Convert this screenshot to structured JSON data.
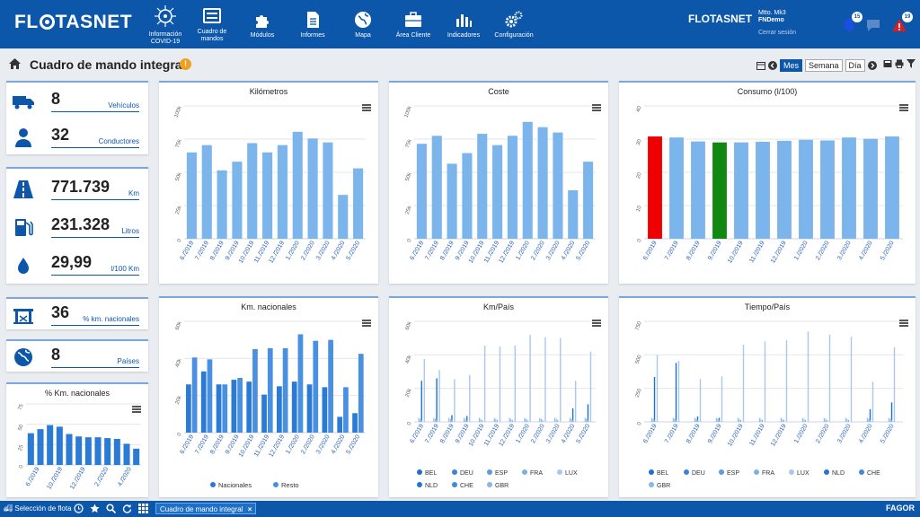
{
  "brand": {
    "name": "FLOTASNET",
    "small": "FLOTASNET"
  },
  "nav": [
    {
      "label": "Información COVID-19",
      "icon": "virus-icon"
    },
    {
      "label": "Cuadro de mandos",
      "icon": "dashboard-icon"
    },
    {
      "label": "Módulos",
      "icon": "puzzle-icon"
    },
    {
      "label": "Informes",
      "icon": "document-icon"
    },
    {
      "label": "Mapa",
      "icon": "globe-icon"
    },
    {
      "label": "Área Cliente",
      "icon": "briefcase-icon"
    },
    {
      "label": "Indicadores",
      "icon": "bar-chart-icon"
    },
    {
      "label": "Configuración",
      "icon": "gears-icon"
    }
  ],
  "user": {
    "line1": "Mtto. Mk3",
    "line2": "FNDemo",
    "logout": "Cerrar sesión"
  },
  "notifications": {
    "alerts": "15",
    "warnings": "19"
  },
  "page": {
    "title": "Cuadro de mando integral",
    "info": "!"
  },
  "period": {
    "mes": "Mes",
    "semana": "Semana",
    "dia": "Día",
    "active": "Mes"
  },
  "kpis": {
    "vehiculos": {
      "value": "8",
      "label": "Vehículos"
    },
    "conductores": {
      "value": "32",
      "label": "Conductores"
    },
    "km": {
      "value": "771.739",
      "label": "Km"
    },
    "litros": {
      "value": "231.328",
      "label": "Litros"
    },
    "consumo": {
      "value": "29,99",
      "label": "l/100 Km"
    },
    "nacionales": {
      "value": "36",
      "label": "% km. nacionales"
    },
    "paises": {
      "value": "8",
      "label": "Países"
    }
  },
  "months": [
    "6./2019",
    "7./2019",
    "8./2019",
    "9./2019",
    "10./2019",
    "11./2019",
    "12./2019",
    "1./2020",
    "2./2020",
    "3./2020",
    "4./2020",
    "5./2020"
  ],
  "chart_data": [
    {
      "id": "kilometros",
      "type": "bar",
      "title": "Kilómetros",
      "ylim": [
        0,
        100000
      ],
      "yticks": [
        "0",
        "25k",
        "50k",
        "75k",
        "100k"
      ],
      "color": "#7cb5ec",
      "values": [
        65000,
        70500,
        51500,
        58000,
        72000,
        65000,
        70500,
        80500,
        75500,
        72500,
        33000,
        53000
      ]
    },
    {
      "id": "coste",
      "type": "bar",
      "title": "Coste",
      "ylim": [
        0,
        100000
      ],
      "yticks": [
        "0",
        "25k",
        "50k",
        "75k",
        "100k"
      ],
      "color": "#7cb5ec",
      "values": [
        71500,
        77500,
        56500,
        64500,
        79000,
        70500,
        77500,
        88000,
        84000,
        80000,
        36500,
        58000
      ]
    },
    {
      "id": "consumo",
      "type": "bar",
      "title": "Consumo (l/100)",
      "ylim": [
        0,
        40
      ],
      "yticks": [
        "0",
        "10",
        "20",
        "30",
        "40"
      ],
      "color": "#7cb5ec",
      "highlight": {
        "0": "#ee0000",
        "3": "#118811"
      },
      "values": [
        30.8,
        30.5,
        29.3,
        29.0,
        29.0,
        29.2,
        29.5,
        29.8,
        29.6,
        30.5,
        30.1,
        30.8
      ]
    },
    {
      "id": "nacionales",
      "type": "bar",
      "title": "Km. nacionales",
      "ylim": [
        0,
        60000
      ],
      "yticks": [
        "0",
        "20k",
        "40k",
        "60k"
      ],
      "series": [
        {
          "name": "Nacionales",
          "color": "#2b7bd6",
          "values": [
            26000,
            33000,
            26000,
            28500,
            27500,
            20500,
            25000,
            27500,
            26000,
            24500,
            8500,
            10500
          ]
        },
        {
          "name": "Resto",
          "color": "#4a90e2",
          "values": [
            40500,
            39500,
            26000,
            29500,
            45000,
            45500,
            45500,
            53000,
            49500,
            50000,
            24500,
            42500
          ]
        }
      ]
    },
    {
      "id": "km_pais",
      "type": "bar",
      "title": "Km/País",
      "ylim": [
        0,
        60000
      ],
      "yticks": [
        "0",
        "20k",
        "40k",
        "60k"
      ],
      "series": [
        {
          "name": "BEL",
          "color": "#1f6fd0"
        },
        {
          "name": "DEU",
          "color": "#3c83d8"
        },
        {
          "name": "ESP",
          "color": "#5d9be0"
        },
        {
          "name": "FRA",
          "color": "#7eb0e6"
        },
        {
          "name": "LUX",
          "color": "#a9c8ee"
        },
        {
          "name": "NLD",
          "color": "#2474d4"
        },
        {
          "name": "CHE",
          "color": "#4189dc"
        },
        {
          "name": "GBR",
          "color": "#8ab5e8"
        }
      ],
      "main_values": [
        37500,
        31000,
        25500,
        28000,
        45500,
        45000,
        45500,
        52000,
        50500,
        50000,
        24500,
        42000
      ],
      "secondary_values": [
        24500,
        26000,
        4000,
        3500,
        0,
        0,
        0,
        0,
        0,
        0,
        8000,
        10500
      ]
    },
    {
      "id": "tiempo_pais",
      "type": "bar",
      "title": "Tiempo/País",
      "ylim": [
        0,
        750
      ],
      "yticks": [
        "0",
        "250",
        "500",
        "750"
      ],
      "series": [
        {
          "name": "BEL",
          "color": "#1f6fd0"
        },
        {
          "name": "DEU",
          "color": "#3c83d8"
        },
        {
          "name": "ESP",
          "color": "#5d9be0"
        },
        {
          "name": "FRA",
          "color": "#7eb0e6"
        },
        {
          "name": "LUX",
          "color": "#a9c8ee"
        },
        {
          "name": "NLD",
          "color": "#2474d4"
        },
        {
          "name": "CHE",
          "color": "#4189dc"
        },
        {
          "name": "GBR",
          "color": "#8ab5e8"
        }
      ],
      "main_values": [
        500,
        455,
        320,
        340,
        575,
        600,
        610,
        675,
        650,
        635,
        300,
        555
      ],
      "secondary_values": [
        335,
        440,
        40,
        30,
        0,
        0,
        0,
        0,
        0,
        0,
        95,
        145
      ]
    },
    {
      "id": "pct_nacionales",
      "type": "bar",
      "title": "% Km. nacionales",
      "ylim": [
        0,
        75
      ],
      "yticks": [
        "0",
        "25",
        "50",
        "75"
      ],
      "color": "#2b7bd6",
      "xlabels": [
        "6./2019",
        "10./2019",
        "12./2019",
        "2./2020",
        "4./2020"
      ],
      "values": [
        39,
        44,
        49,
        47,
        38,
        35,
        34,
        34,
        33,
        32,
        26,
        20
      ]
    }
  ],
  "footer": {
    "fleet": "Selección de flota",
    "tab": "Cuadro de mando integral",
    "brand": "FAGOR"
  }
}
